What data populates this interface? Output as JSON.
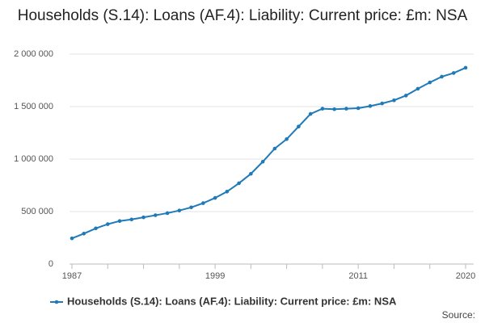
{
  "chart_data": {
    "type": "line",
    "title": "Households (S.14): Loans (AF.4): Liability: Current price: £m: NSA",
    "x": [
      1987,
      1988,
      1989,
      1990,
      1991,
      1992,
      1993,
      1994,
      1995,
      1996,
      1997,
      1998,
      1999,
      2000,
      2001,
      2002,
      2003,
      2004,
      2005,
      2006,
      2007,
      2008,
      2009,
      2010,
      2011,
      2012,
      2013,
      2014,
      2015,
      2016,
      2017,
      2018,
      2019,
      2020
    ],
    "series": [
      {
        "name": "Households (S.14): Loans (AF.4): Liability: Current price: £m: NSA",
        "color": "#1f7ab8",
        "values": [
          245000,
          290000,
          340000,
          380000,
          410000,
          425000,
          445000,
          465000,
          485000,
          510000,
          540000,
          580000,
          630000,
          690000,
          770000,
          860000,
          975000,
          1100000,
          1190000,
          1310000,
          1430000,
          1480000,
          1475000,
          1480000,
          1485000,
          1505000,
          1530000,
          1560000,
          1605000,
          1670000,
          1730000,
          1785000,
          1820000,
          1870000
        ]
      }
    ],
    "xlim": [
      1987,
      2020
    ],
    "xticks": [
      1987,
      1999,
      2011,
      2020
    ],
    "xminorticks": [
      1990,
      1993,
      1996,
      2002,
      2005,
      2008,
      2014,
      2017
    ],
    "ylim": [
      0,
      2000000
    ],
    "yticks": [
      0,
      {
        "value": 500000,
        "label": "500 000"
      },
      {
        "value": 1000000,
        "label": "1 000 000"
      },
      {
        "value": 1500000,
        "label": "1 500 000"
      },
      {
        "value": 2000000,
        "label": "2 000 000"
      }
    ],
    "grid": true,
    "legend": "bottom",
    "source": "Source:"
  }
}
